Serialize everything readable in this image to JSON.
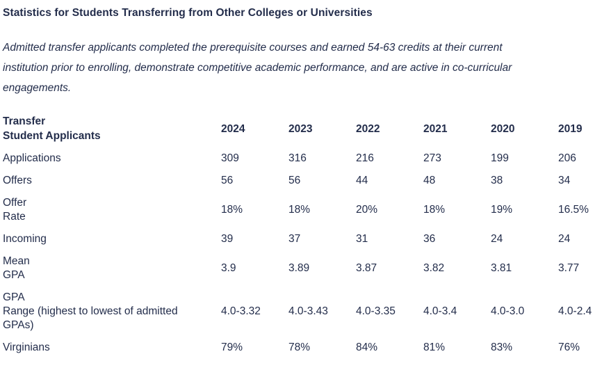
{
  "page": {
    "title": "Statistics for Students Transferring from Other Colleges or Universities",
    "intro": "Admitted transfer applicants completed the prerequisite courses and earned 54-63 credits at their current institution prior to enrolling, demonstrate competitive academic performance, and are active in co-curricular engagements."
  },
  "colors": {
    "text": "#232d4b",
    "background": "#ffffff"
  },
  "table": {
    "header_label": "Transfer\nStudent Applicants",
    "years": [
      "2024",
      "2023",
      "2022",
      "2021",
      "2020",
      "2019"
    ],
    "rows": [
      {
        "label": "Applications",
        "values": [
          "309",
          "316",
          "216",
          "273",
          "199",
          "206"
        ]
      },
      {
        "label": "Offers",
        "values": [
          "56",
          "56",
          "44",
          "48",
          "38",
          "34"
        ]
      },
      {
        "label": "Offer\nRate",
        "values": [
          "18%",
          "18%",
          "20%",
          "18%",
          "19%",
          "16.5%"
        ]
      },
      {
        "label": "Incoming",
        "values": [
          "39",
          "37",
          "31",
          "36",
          "24",
          "24"
        ]
      },
      {
        "label": "Mean\nGPA",
        "values": [
          "3.9",
          "3.89",
          "3.87",
          "3.82",
          "3.81",
          "3.77"
        ]
      },
      {
        "label": "GPA\nRange (highest to lowest of admitted GPAs)",
        "values": [
          "4.0-3.32",
          "4.0-3.43",
          "4.0-3.35",
          "4.0-3.4",
          "4.0-3.0",
          "4.0-2.4"
        ]
      },
      {
        "label": "Virginians",
        "values": [
          "79%",
          "78%",
          "84%",
          "81%",
          "83%",
          "76%"
        ]
      }
    ]
  }
}
